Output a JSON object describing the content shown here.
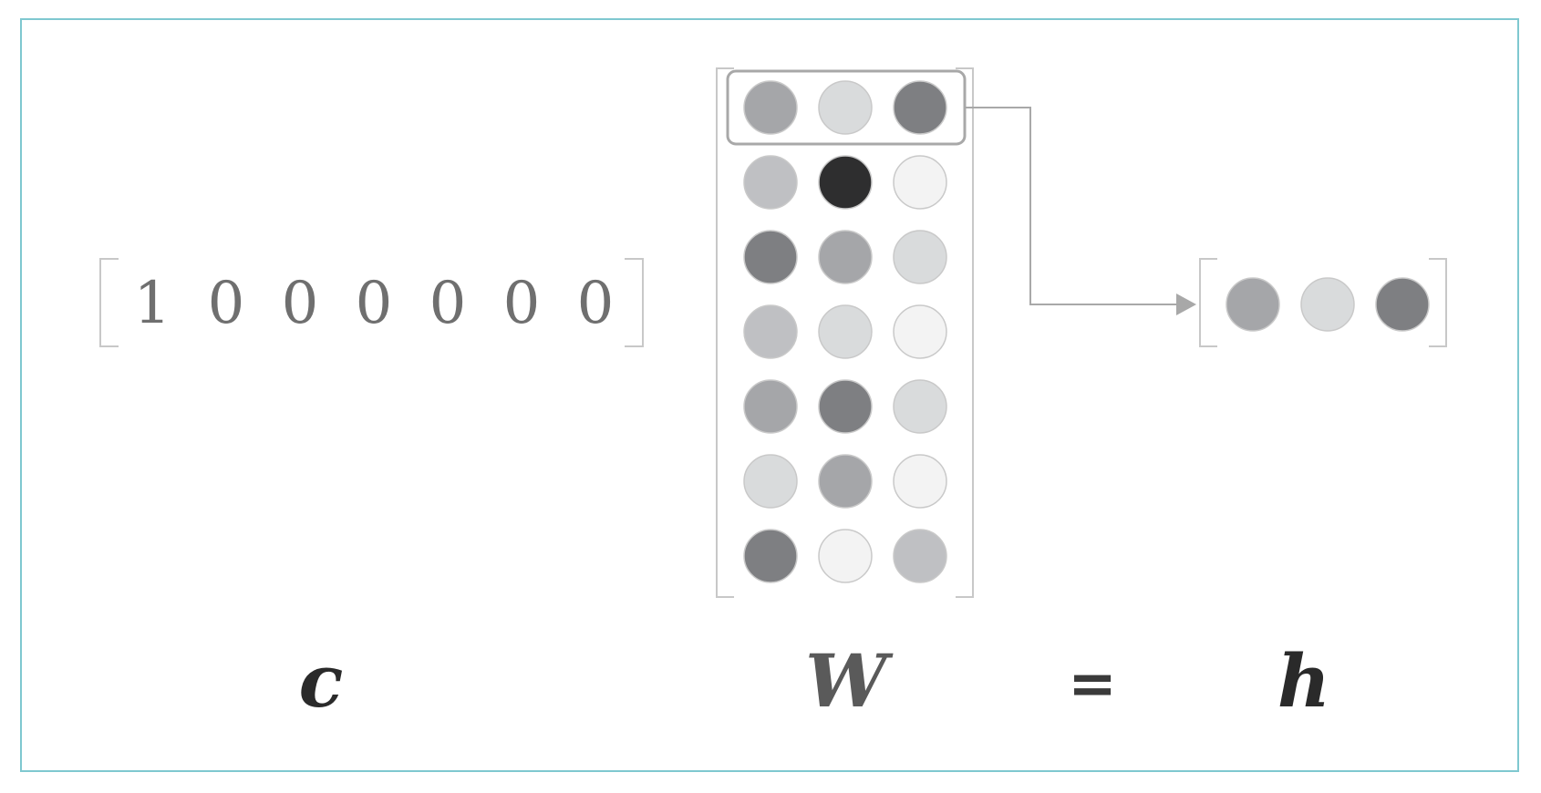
{
  "one_hot_vector": {
    "values": [
      "1",
      "0",
      "0",
      "0",
      "0",
      "0",
      "0"
    ],
    "label": "c"
  },
  "weight_matrix": {
    "label": "W",
    "highlighted_row": 0,
    "rows": [
      [
        "#a5a6a9",
        "#d9dbdc",
        "#7e7f82"
      ],
      [
        "#bfc0c3",
        "#2e2e2f",
        "#f3f3f3"
      ],
      [
        "#7e7f82",
        "#a5a6a9",
        "#d9dbdc"
      ],
      [
        "#bfc0c3",
        "#d9dbdc",
        "#f3f3f3"
      ],
      [
        "#a5a6a9",
        "#7e7f82",
        "#d9dbdc"
      ],
      [
        "#d9dbdc",
        "#a5a6a9",
        "#f3f3f3"
      ],
      [
        "#7e7f82",
        "#f3f3f3",
        "#bfc0c3"
      ]
    ]
  },
  "equals_sign": "=",
  "hidden_vector": {
    "label": "h",
    "values": [
      "#a5a6a9",
      "#d9dbdc",
      "#7e7f82"
    ]
  },
  "colors": {
    "frame": "#7fc8d0",
    "bracket": "#c8c8c8",
    "circle_stroke": "#c9c9c9",
    "highlight_box": "#a8a8a8",
    "arrow": "#a8a8a8",
    "label_dark": "#2a2a2a",
    "label_mid": "#5a5a5a"
  }
}
